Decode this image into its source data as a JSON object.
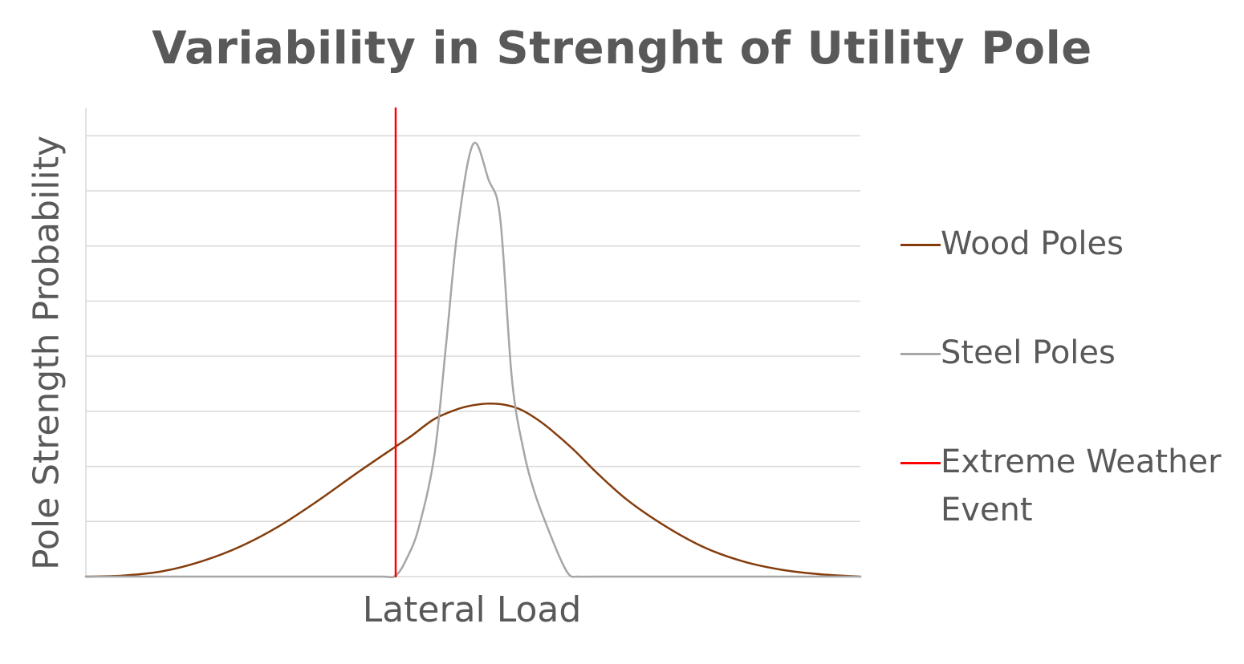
{
  "chart_data": {
    "type": "line",
    "title": "Variability in Strenght of Utility Pole",
    "xlabel": "Lateral Load",
    "ylabel": "Pole Strength Probability",
    "xlim": [
      0,
      100
    ],
    "ylim": [
      0,
      8.5
    ],
    "grid": "horizontal",
    "legend_position": "right",
    "series": [
      {
        "name": "Wood Poles",
        "color": "#843c0c",
        "x": [
          0,
          5,
          10,
          15,
          20,
          25,
          30,
          35,
          40,
          42,
          45,
          48,
          50,
          52,
          54,
          56,
          58,
          60,
          63,
          66,
          70,
          75,
          80,
          85,
          90,
          95,
          100
        ],
        "y": [
          0.0,
          0.02,
          0.1,
          0.28,
          0.55,
          0.92,
          1.38,
          1.88,
          2.36,
          2.55,
          2.86,
          3.04,
          3.11,
          3.14,
          3.12,
          3.04,
          2.88,
          2.67,
          2.3,
          1.88,
          1.38,
          0.9,
          0.52,
          0.27,
          0.12,
          0.04,
          0.0
        ]
      },
      {
        "name": "Steel Poles",
        "color": "#a6a6a6",
        "x": [
          0,
          10,
          20,
          30,
          38,
          40,
          41.5,
          43,
          45,
          46.5,
          48,
          50,
          52,
          53.5,
          55,
          56.5,
          58,
          60,
          61.5,
          62.5,
          63.5,
          66,
          75,
          100
        ],
        "y": [
          0.0,
          0.0,
          0.0,
          0.0,
          0.0,
          0.02,
          0.35,
          0.9,
          2.2,
          4.2,
          6.3,
          7.85,
          7.2,
          6.5,
          3.6,
          2.3,
          1.5,
          0.75,
          0.25,
          0.02,
          0.0,
          0.0,
          0.0,
          0.0
        ]
      },
      {
        "name": "Extreme Weather Event",
        "color": "#ff0000",
        "x": [
          40,
          40
        ],
        "y": [
          0,
          8.5
        ]
      }
    ]
  }
}
